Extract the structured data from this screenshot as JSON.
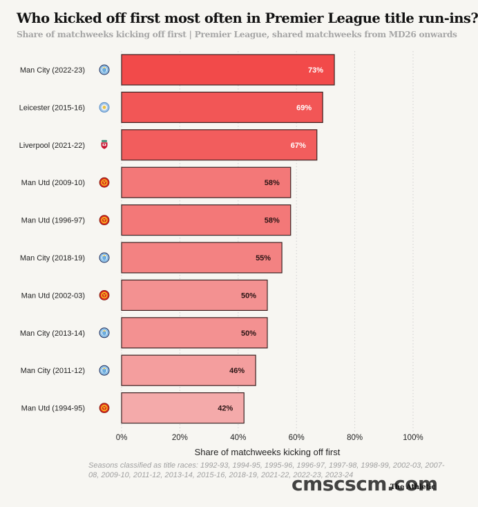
{
  "header": {
    "title": "Who kicked off first most often in Premier League title run-ins?",
    "subtitle": "Share of matchweeks kicking off first | Premier League, shared matchweeks from MD26 onwards"
  },
  "chart_data": {
    "type": "bar",
    "orientation": "horizontal",
    "title": "Who kicked off first most often in Premier League title run-ins?",
    "subtitle": "Share of matchweeks kicking off first | Premier League, shared matchweeks from MD26 onwards",
    "xlabel": "Share of matchweeks kicking off first",
    "ylabel": "",
    "xlim": [
      0,
      100
    ],
    "x_ticks": [
      0,
      20,
      40,
      60,
      80,
      100
    ],
    "x_tick_labels": [
      "0%",
      "20%",
      "40%",
      "60%",
      "80%",
      "100%"
    ],
    "grid": "vertical dotted",
    "categories": [
      "Man City (2022-23)",
      "Leicester (2015-16)",
      "Liverpool (2021-22)",
      "Man Utd (2009-10)",
      "Man Utd (1996-97)",
      "Man City (2018-19)",
      "Man Utd (2002-03)",
      "Man City (2013-14)",
      "Man City (2011-12)",
      "Man Utd (1994-95)"
    ],
    "values": [
      73,
      69,
      67,
      58,
      58,
      55,
      50,
      50,
      46,
      42
    ],
    "value_labels": [
      "73%",
      "69%",
      "67%",
      "58%",
      "58%",
      "55%",
      "50%",
      "50%",
      "46%",
      "42%"
    ],
    "crests": [
      "man-city-crest",
      "leicester-crest",
      "liverpool-crest",
      "man-utd-crest",
      "man-utd-crest",
      "man-city-crest",
      "man-utd-crest",
      "man-city-crest",
      "man-city-crest",
      "man-utd-crest"
    ],
    "color_scale": {
      "low": "#f4aaaa",
      "high": "#f24a4a"
    },
    "bar_border_color": "#3a2222"
  },
  "footer": {
    "note": "Seasons classified as title races: 1992-93, 1994-95, 1995-96, 1996-97, 1997-98, 1998-99, 2002-03, 2007-08, 2009-10, 2011-12, 2013-14, 2015-16, 2018-19, 2021-22, 2022-23, 2023-24",
    "credit": "The Athletic",
    "watermark": "cmscscm.com"
  }
}
